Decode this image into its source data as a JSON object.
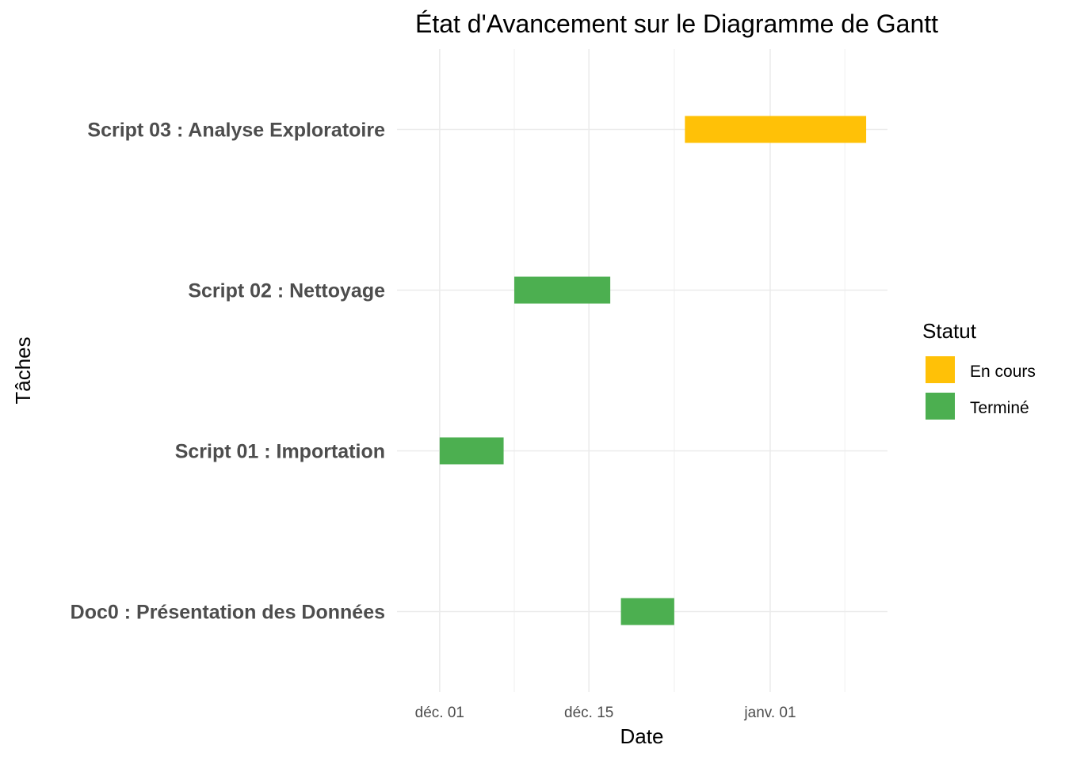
{
  "chart_data": {
    "type": "bar",
    "subtype": "gantt",
    "title": "État d'Avancement sur le Diagramme de Gantt",
    "xlabel": "Date",
    "ylabel": "Tâches",
    "x_axis": {
      "type": "date",
      "range": [
        "2024-11-27",
        "2025-01-12"
      ],
      "ticks": [
        {
          "date": "2024-12-01",
          "label": "déc. 01"
        },
        {
          "date": "2024-12-15",
          "label": "déc. 15"
        },
        {
          "date": "2025-01-01",
          "label": "janv. 01"
        }
      ],
      "minor_ticks": [
        "2024-12-08",
        "2024-12-23",
        "2025-01-08"
      ]
    },
    "categories": [
      "Doc0 : Présentation des Données",
      "Script 01 : Importation",
      "Script 02 : Nettoyage",
      "Script 03 : Analyse Exploratoire"
    ],
    "tasks": [
      {
        "task": "Script 03 : Analyse Exploratoire",
        "start": "2024-12-24",
        "end": "2025-01-10",
        "status": "En cours"
      },
      {
        "task": "Script 02 : Nettoyage",
        "start": "2024-12-08",
        "end": "2024-12-17",
        "status": "Terminé"
      },
      {
        "task": "Script 01 : Importation",
        "start": "2024-12-01",
        "end": "2024-12-07",
        "status": "Terminé"
      },
      {
        "task": "Doc0 : Présentation des Données",
        "start": "2024-12-18",
        "end": "2024-12-23",
        "status": "Terminé"
      }
    ],
    "legend": {
      "title": "Statut",
      "position": "right",
      "items": [
        {
          "label": "En cours",
          "color": "#FFC107"
        },
        {
          "label": "Terminé",
          "color": "#4CAF50"
        }
      ]
    },
    "grid": true
  }
}
